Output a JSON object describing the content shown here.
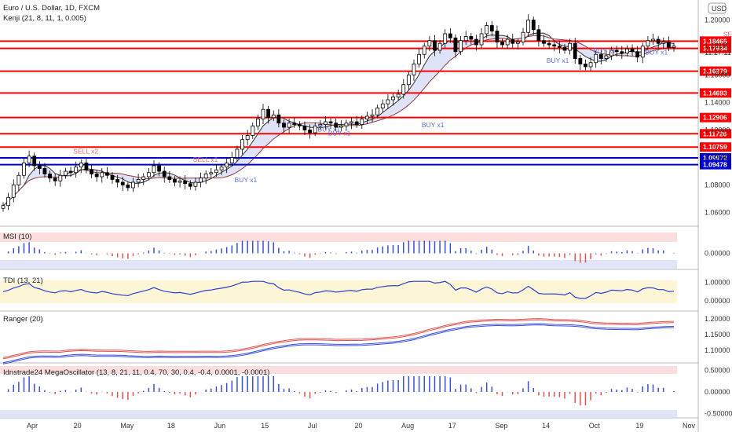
{
  "chart_data": [
    {
      "type": "candlestick",
      "title": "Euro / U.S. Dollar, 1D, FXCM",
      "indicator_label": "Kenji (21, 8, 11, 1, 0.005)",
      "currency_badge": "USD",
      "ylim": [
        1.05,
        1.21
      ],
      "y_ticks": [
        "1.20000",
        "1.18150",
        "1.16000",
        "1.14000",
        "1.12000",
        "1.10000",
        "1.08000",
        "1.06000"
      ],
      "y_tick_values": [
        1.2,
        1.1815,
        1.16,
        1.14,
        1.12,
        1.1,
        1.08,
        1.06
      ],
      "countdown": "11:27:11",
      "x_labels": [
        "Apr",
        "20",
        "May",
        "18",
        "Jun",
        "15",
        "Jul",
        "20",
        "Aug",
        "17",
        "Sep",
        "14",
        "Oct",
        "19",
        "Nov"
      ],
      "horizontal_levels": [
        {
          "value": 1.18465,
          "label": "1.18465",
          "color": "#ff0000"
        },
        {
          "value": 1.17934,
          "label": "1.17934",
          "color": "#ff0000"
        },
        {
          "value": 1.16279,
          "label": "1.16279",
          "color": "#ff0000"
        },
        {
          "value": 1.14693,
          "label": "1.14693",
          "color": "#ff0000"
        },
        {
          "value": 1.12906,
          "label": "1.12906",
          "color": "#ff0000"
        },
        {
          "value": 1.11726,
          "label": "1.11726",
          "color": "#ff0000"
        },
        {
          "value": 1.10759,
          "label": "1.10759",
          "color": "#ff0000"
        },
        {
          "value": 1.09972,
          "label": "1.09972",
          "color": "#0000cc"
        },
        {
          "value": 1.09478,
          "label": "1.09478",
          "color": "#0000cc"
        }
      ],
      "signal_labels": [
        {
          "text": "SELL x2",
          "kind": "sell",
          "index": 15,
          "value": 1.103
        },
        {
          "text": "SELL x1",
          "kind": "sell",
          "index": 38,
          "value": 1.097
        },
        {
          "text": "BUY x1",
          "kind": "buy",
          "index": 46,
          "value": 1.082
        },
        {
          "text": "BUY x1",
          "kind": "buy",
          "index": 62,
          "value": 1.119
        },
        {
          "text": "BUY x1",
          "kind": "buy",
          "index": 64,
          "value": 1.116
        },
        {
          "text": "BUY x1",
          "kind": "buy",
          "index": 82,
          "value": 1.122
        },
        {
          "text": "BUY x1",
          "kind": "buy",
          "index": 106,
          "value": 1.169
        },
        {
          "text": "SELL x1",
          "kind": "sell",
          "index": 140,
          "value": 1.188
        },
        {
          "text": "BUY x1",
          "kind": "buy",
          "index": 115,
          "value": 1.176
        },
        {
          "text": "BUY x1",
          "kind": "buy",
          "index": 125,
          "value": 1.175
        },
        {
          "text": "BUY x1",
          "kind": "buy",
          "index": 160,
          "value": 1.176
        }
      ],
      "price_series": [
        1.065,
        1.071,
        1.08,
        1.087,
        1.096,
        1.101,
        1.094,
        1.092,
        1.088,
        1.085,
        1.083,
        1.087,
        1.09,
        1.089,
        1.093,
        1.096,
        1.091,
        1.088,
        1.086,
        1.089,
        1.087,
        1.084,
        1.082,
        1.08,
        1.078,
        1.082,
        1.084,
        1.086,
        1.089,
        1.094,
        1.09,
        1.086,
        1.084,
        1.082,
        1.083,
        1.081,
        1.079,
        1.082,
        1.085,
        1.088,
        1.089,
        1.091,
        1.093,
        1.096,
        1.1,
        1.106,
        1.113,
        1.116,
        1.123,
        1.128,
        1.135,
        1.129,
        1.131,
        1.125,
        1.122,
        1.125,
        1.124,
        1.123,
        1.12,
        1.118,
        1.123,
        1.124,
        1.126,
        1.125,
        1.122,
        1.123,
        1.125,
        1.126,
        1.124,
        1.128,
        1.13,
        1.131,
        1.136,
        1.139,
        1.142,
        1.144,
        1.146,
        1.153,
        1.16,
        1.168,
        1.175,
        1.181,
        1.185,
        1.178,
        1.183,
        1.19,
        1.187,
        1.177,
        1.185,
        1.188,
        1.186,
        1.182,
        1.19,
        1.196,
        1.192,
        1.184,
        1.182,
        1.186,
        1.183,
        1.184,
        1.191,
        1.2,
        1.193,
        1.185,
        1.183,
        1.182,
        1.181,
        1.18,
        1.178,
        1.183,
        1.172,
        1.168,
        1.166,
        1.169,
        1.175,
        1.172,
        1.174,
        1.178,
        1.177,
        1.176,
        1.179,
        1.177,
        1.173,
        1.181,
        1.185,
        1.186,
        1.183,
        1.184,
        1.18,
        1.181
      ],
      "panels": [
        {
          "name": "MSI (10)",
          "ylim": [
            -0.7,
            0.7
          ],
          "y_ticks": [
            "0.00000"
          ]
        },
        {
          "name": "TDI (13, 21)",
          "ylim": [
            -0.9,
            1.2
          ],
          "y_ticks": [
            "1.00000",
            "0.00000"
          ]
        },
        {
          "name": "Ranger (20)",
          "ylim": [
            1.06,
            1.22
          ],
          "y_ticks": [
            "1.20000",
            "1.15000",
            "1.10000"
          ]
        },
        {
          "name": "Idnstrade24 MegaOscillator (13, 8, 21, 11, 0.4, 70, 30, 0.4, -0.4, 0.0001, -0.0001)",
          "ylim": [
            -0.7,
            0.7
          ],
          "y_ticks": [
            "0.50000",
            "0.00000",
            "-0.50000"
          ]
        }
      ]
    }
  ],
  "colors": {
    "up": "#000000",
    "down": "#000000",
    "level_red": "#ff0000",
    "level_blue": "#0000cc",
    "buy": "#5a6fd6",
    "sell": "#e06a6a"
  }
}
